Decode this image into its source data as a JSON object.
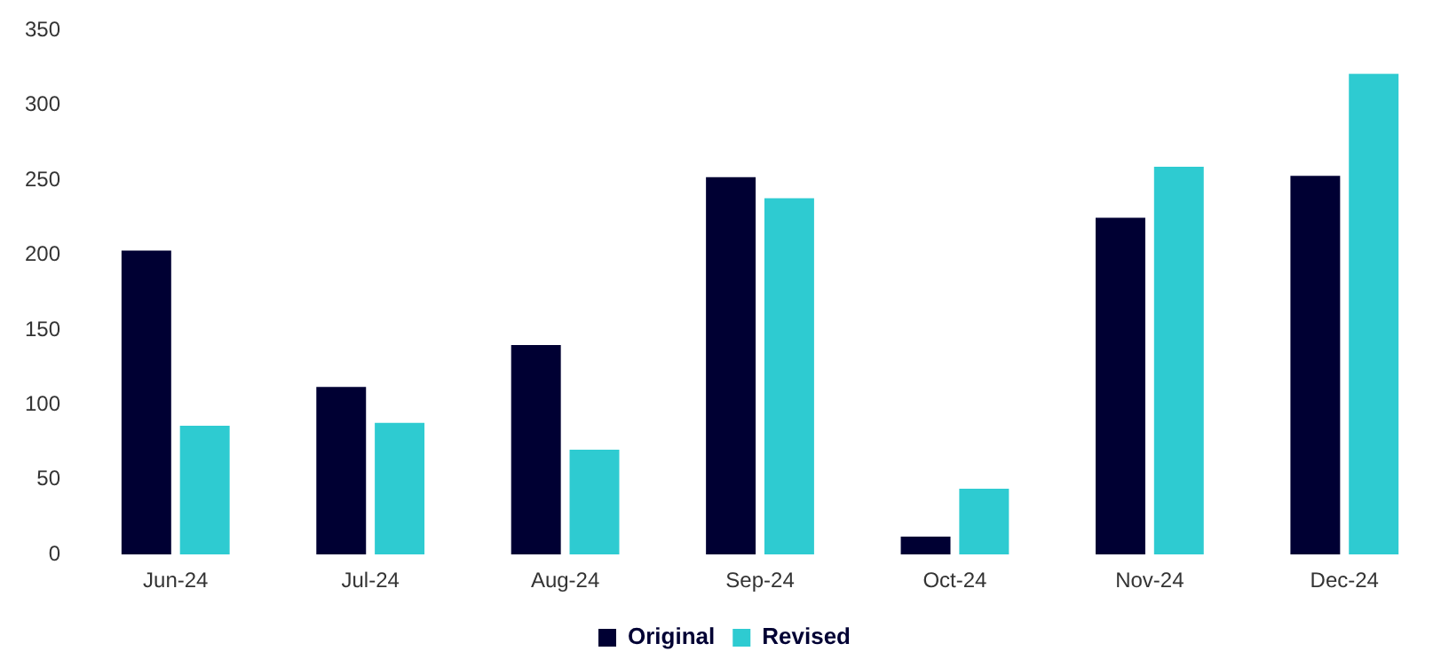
{
  "chart_data": {
    "type": "bar",
    "categories": [
      "Jun-24",
      "Jul-24",
      "Aug-24",
      "Sep-24",
      "Oct-24",
      "Nov-24",
      "Dec-24"
    ],
    "series": [
      {
        "name": "Original",
        "color": "#000033",
        "values": [
          203,
          112,
          140,
          252,
          12,
          225,
          253
        ]
      },
      {
        "name": "Revised",
        "color": "#2ecbd1",
        "values": [
          86,
          88,
          70,
          238,
          44,
          259,
          321
        ]
      }
    ],
    "ylim": [
      0,
      350
    ],
    "yticks": [
      0,
      50,
      100,
      150,
      200,
      250,
      300,
      350
    ],
    "grid": false,
    "legend": "bottom"
  }
}
